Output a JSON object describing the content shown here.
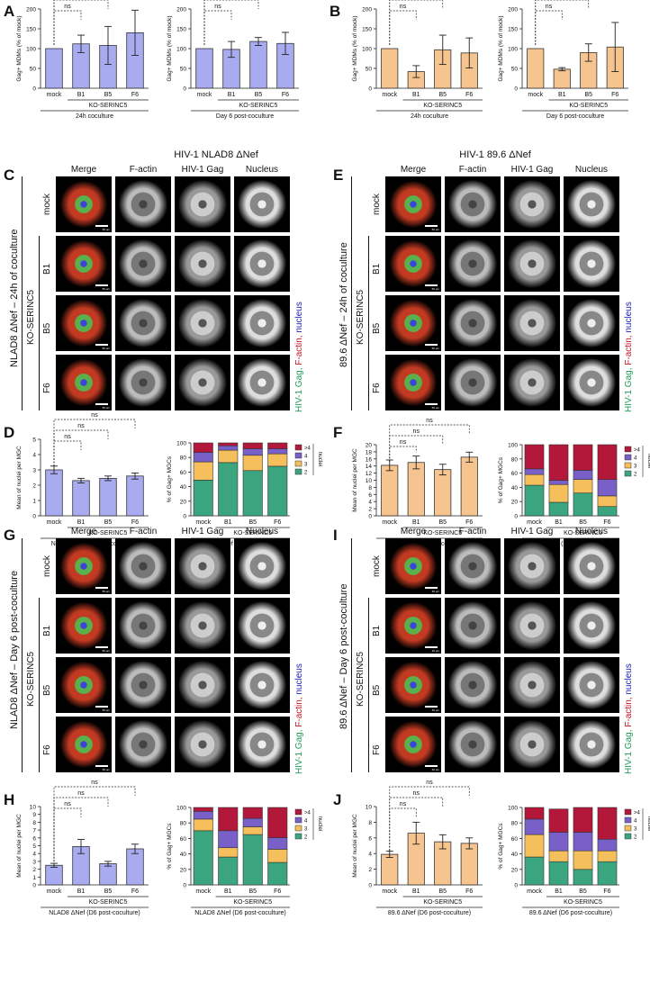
{
  "panels": {
    "A": "A",
    "B": "B",
    "C": "C",
    "D": "D",
    "E": "E",
    "F": "F",
    "G": "G",
    "H": "H",
    "I": "I",
    "J": "J"
  },
  "common": {
    "ko_label": "KO-SERINC5",
    "ns": "ns",
    "ylabel_gag_pct": "Gag+ MDMs (% of mock)",
    "ylabel_mean_nuclei": "Mean of nuclei per MGC",
    "ylabel_pct_gag_mgc": "% of Gag+ MGCs",
    "legend_title": "nuclei",
    "legend_items": [
      ">4",
      "4",
      "3",
      "2"
    ],
    "cond_24h": "24h coculture",
    "cond_d6": "Day 6 post-coculture"
  },
  "micro": {
    "headers": [
      "Merge",
      "F-actin",
      "HIV-1 Gag",
      "Nucleus"
    ],
    "rows": [
      "mock",
      "B1",
      "B5",
      "F6"
    ],
    "scale_C": "50 µm",
    "scale_E": "50 µm",
    "scale_G": "50 µm",
    "scale_I": "40 µm",
    "title_C": "HIV-1 NLAD8 ΔNef",
    "title_E": "HIV-1 89.6 ΔNef",
    "side_C": "NLAD8 ΔNef – 24h of coculture",
    "side_E": "89.6 ΔNef – 24h of coculture",
    "side_G": "NLAD8 ΔNef – Day 6 post-coculture",
    "side_I": "89.6 ΔNef – Day 6 post-coculture",
    "stain_legend": [
      "HIV-1 Gag, ",
      "F-actin, ",
      "nucleus"
    ]
  },
  "chart_data": [
    {
      "panel": "A",
      "type": "bar",
      "title": "",
      "categories": [
        "mock",
        "B1",
        "B5",
        "F6"
      ],
      "values": [
        100,
        112,
        108,
        140
      ],
      "errors": [
        0,
        22,
        48,
        57
      ],
      "ylim": [
        0,
        200
      ],
      "yticks": [
        0,
        50,
        100,
        150,
        200
      ],
      "ylabel": "Gag+ MDMs (% of mock)",
      "xlabel": "24h coculture",
      "color": "#a9abf0"
    },
    {
      "panel": "A",
      "type": "bar",
      "title": "",
      "categories": [
        "mock",
        "B1",
        "B5",
        "F6"
      ],
      "values": [
        100,
        98,
        118,
        113
      ],
      "errors": [
        0,
        20,
        10,
        28
      ],
      "ylim": [
        0,
        200
      ],
      "yticks": [
        0,
        50,
        100,
        150,
        200
      ],
      "ylabel": "Gag+ MDMs (% of mock)",
      "xlabel": "Day 6 post-coculture",
      "color": "#a9abf0"
    },
    {
      "panel": "B",
      "type": "bar",
      "title": "",
      "categories": [
        "mock",
        "B1",
        "B5",
        "F6"
      ],
      "values": [
        100,
        42,
        97,
        89
      ],
      "errors": [
        0,
        15,
        37,
        38
      ],
      "ylim": [
        0,
        200
      ],
      "yticks": [
        0,
        50,
        100,
        150,
        200
      ],
      "ylabel": "Gag+ MDMs (% of mock)",
      "xlabel": "24h coculture",
      "color": "#f6c48f"
    },
    {
      "panel": "B",
      "type": "bar",
      "title": "",
      "categories": [
        "mock",
        "B1",
        "B5",
        "F6"
      ],
      "values": [
        100,
        48,
        90,
        104
      ],
      "errors": [
        0,
        4,
        22,
        62
      ],
      "ylim": [
        0,
        200
      ],
      "yticks": [
        0,
        50,
        100,
        150,
        200
      ],
      "ylabel": "Gag+ MDMs (% of mock)",
      "xlabel": "Day 6 post-coculture",
      "color": "#f6c48f"
    },
    {
      "panel": "D",
      "type": "bar",
      "categories": [
        "mock",
        "B1",
        "B5",
        "F6"
      ],
      "values": [
        3.0,
        2.3,
        2.45,
        2.6
      ],
      "errors": [
        0.25,
        0.15,
        0.15,
        0.2
      ],
      "ylim": [
        0,
        5
      ],
      "yticks": [
        0,
        1,
        2,
        3,
        4,
        5
      ],
      "ylabel": "Mean of nuclei per MGC",
      "xlabel": "NLAD8 ΔNef (24h of coculture)",
      "color": "#a9abf0"
    },
    {
      "panel": "D",
      "type": "stacked-bar",
      "categories": [
        "mock",
        "B1",
        "B5",
        "F6"
      ],
      "series": [
        {
          "name": "2",
          "values": [
            49,
            73,
            62,
            68
          ]
        },
        {
          "name": "3",
          "values": [
            25,
            17,
            21,
            17
          ]
        },
        {
          "name": "4",
          "values": [
            13,
            6,
            9,
            7
          ]
        },
        {
          "name": ">4",
          "values": [
            13,
            4,
            8,
            8
          ]
        }
      ],
      "ylim": [
        0,
        100
      ],
      "yticks": [
        0,
        20,
        40,
        60,
        80,
        100
      ],
      "ylabel": "% of Gag+ MGCs",
      "xlabel": "NLAD8 ΔNef (24h of coculture)"
    },
    {
      "panel": "F",
      "type": "bar",
      "categories": [
        "mock",
        "B1",
        "B5",
        "F6"
      ],
      "values": [
        14.2,
        15.0,
        13.0,
        16.5
      ],
      "errors": [
        1.5,
        1.8,
        1.5,
        1.4
      ],
      "ylim": [
        0,
        20
      ],
      "yticks": [
        0,
        2,
        4,
        6,
        8,
        10,
        12,
        14,
        16,
        18,
        20
      ],
      "ylabel": "Mean of nuclei per MGC",
      "xlabel": "89.6 ΔNef (24h of coculture)",
      "color": "#f6c48f"
    },
    {
      "panel": "F",
      "type": "stacked-bar",
      "categories": [
        "mock",
        "B1",
        "B5",
        "F6"
      ],
      "series": [
        {
          "name": "2",
          "values": [
            43,
            19,
            32,
            13
          ]
        },
        {
          "name": "3",
          "values": [
            15,
            25,
            19,
            15
          ]
        },
        {
          "name": "4",
          "values": [
            8,
            6,
            13,
            23
          ]
        },
        {
          "name": ">4",
          "values": [
            34,
            50,
            36,
            49
          ]
        }
      ],
      "ylim": [
        0,
        100
      ],
      "yticks": [
        0,
        20,
        40,
        60,
        80,
        100
      ],
      "ylabel": "% of Gag+ MGCs",
      "xlabel": "89.6 ΔNef (24h of coculture)"
    },
    {
      "panel": "H",
      "type": "bar",
      "categories": [
        "mock",
        "B1",
        "B5",
        "F6"
      ],
      "values": [
        2.5,
        4.9,
        2.7,
        4.6
      ],
      "errors": [
        0.25,
        0.9,
        0.3,
        0.6
      ],
      "ylim": [
        0,
        10
      ],
      "yticks": [
        0,
        1,
        2,
        3,
        4,
        5,
        6,
        7,
        8,
        9,
        10
      ],
      "ylabel": "Mean of nuclei per MGC",
      "xlabel": "NLAD8 ΔNef (D6 post-coculture)",
      "color": "#a9abf0"
    },
    {
      "panel": "H",
      "type": "stacked-bar",
      "categories": [
        "mock",
        "B1",
        "B5",
        "F6"
      ],
      "series": [
        {
          "name": "2",
          "values": [
            70,
            36,
            65,
            29
          ]
        },
        {
          "name": "3",
          "values": [
            15,
            12,
            10,
            17
          ]
        },
        {
          "name": "4",
          "values": [
            10,
            22,
            11,
            15
          ]
        },
        {
          "name": ">4",
          "values": [
            5,
            30,
            14,
            39
          ]
        }
      ],
      "ylim": [
        0,
        100
      ],
      "yticks": [
        0,
        20,
        40,
        60,
        80,
        100
      ],
      "ylabel": "% of Gag+ MGCs",
      "xlabel": "NLAD8 ΔNef (D6 post-coculture)"
    },
    {
      "panel": "J",
      "type": "bar",
      "categories": [
        "mock",
        "B1",
        "B5",
        "F6"
      ],
      "values": [
        3.9,
        6.6,
        5.5,
        5.3
      ],
      "errors": [
        0.4,
        1.4,
        0.9,
        0.7
      ],
      "ylim": [
        0,
        10
      ],
      "yticks": [
        0,
        2,
        4,
        6,
        8,
        10
      ],
      "ylabel": "Mean of nuclei per MGC",
      "xlabel": "89.6 ΔNef (D6 post-coculture)",
      "color": "#f6c48f"
    },
    {
      "panel": "J",
      "type": "stacked-bar",
      "categories": [
        "mock",
        "B1",
        "B5",
        "F6"
      ],
      "series": [
        {
          "name": "2",
          "values": [
            36,
            30,
            20,
            30
          ]
        },
        {
          "name": "3",
          "values": [
            29,
            14,
            24,
            14
          ]
        },
        {
          "name": "4",
          "values": [
            20,
            24,
            24,
            15
          ]
        },
        {
          "name": ">4",
          "values": [
            15,
            30,
            32,
            41
          ]
        }
      ],
      "ylim": [
        0,
        100
      ],
      "yticks": [
        0,
        20,
        40,
        60,
        80,
        100
      ],
      "ylabel": "% of Gag+ MGCs",
      "xlabel": "89.6 ΔNef (D6 post-coculture)"
    }
  ],
  "stack_colors": {
    "2": "#3aa57f",
    ">4": "#b3173a",
    "4": "#7860c8",
    "3": "#f5c05c"
  }
}
